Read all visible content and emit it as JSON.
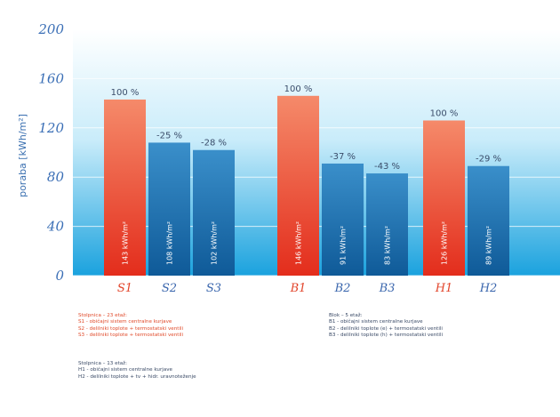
{
  "chart_data": {
    "type": "bar",
    "ylabel": "poraba [kWh/m²]",
    "ylim": [
      0,
      200
    ],
    "yticks": [
      "0",
      "40",
      "80",
      "120",
      "160",
      "200"
    ],
    "grid": true,
    "groups": [
      {
        "bars": [
          {
            "label": "S1",
            "value": 143,
            "pct": "100 %",
            "value_label": "143 kWh/m²",
            "color": "#e8442a"
          },
          {
            "label": "S2",
            "value": 108,
            "pct": "-25 %",
            "value_label": "108 kWh/m²",
            "color": "#1f6fae"
          },
          {
            "label": "S3",
            "value": 102,
            "pct": "-28 %",
            "value_label": "102 kWh/m²",
            "color": "#1f6fae"
          }
        ]
      },
      {
        "bars": [
          {
            "label": "B1",
            "value": 146,
            "pct": "100 %",
            "value_label": "146 kWh/m²",
            "color": "#e8442a"
          },
          {
            "label": "B2",
            "value": 91,
            "pct": "-37 %",
            "value_label": "91 kWh/m²",
            "color": "#1f6fae"
          },
          {
            "label": "B3",
            "value": 83,
            "pct": "-43 %",
            "value_label": "83 kWh/m²",
            "color": "#1f6fae"
          }
        ]
      },
      {
        "bars": [
          {
            "label": "H1",
            "value": 126,
            "pct": "100 %",
            "value_label": "126 kWh/m²",
            "color": "#e8442a"
          },
          {
            "label": "H2",
            "value": 89,
            "pct": "-29 %",
            "value_label": "89 kWh/m²",
            "color": "#1f6fae"
          }
        ]
      }
    ]
  },
  "legend": {
    "s_title": "Stolpnica – 23 etaž:",
    "s_lines": [
      "S1 -   običajni sistem centralne kurjave",
      "S2 -   delilniki toplote + termostatski ventili",
      "S3 -   delilniki toplote + termostatski ventili"
    ],
    "b_title": "Blok – 5 etaž:",
    "b_lines": [
      "B1 -   običajni sistem centralne kurjave",
      "B2 -   delilniki toplote (e) + termostatski ventili",
      "B3 -   delilniki toplote (h) + termostatski ventili"
    ],
    "h_title": "Stolpnica – 13 etaž:",
    "h_lines": [
      "H1 -   običajni sistem centralne kurjave",
      "H2 -   delilniki toplote + tv + hidr. uravnoteženje"
    ]
  },
  "colors": {
    "red_bar": "#e8442a",
    "blue_bar": "#1f6fae",
    "axis_text": "#3b6fb6",
    "legend_red": "#e04a2a"
  }
}
